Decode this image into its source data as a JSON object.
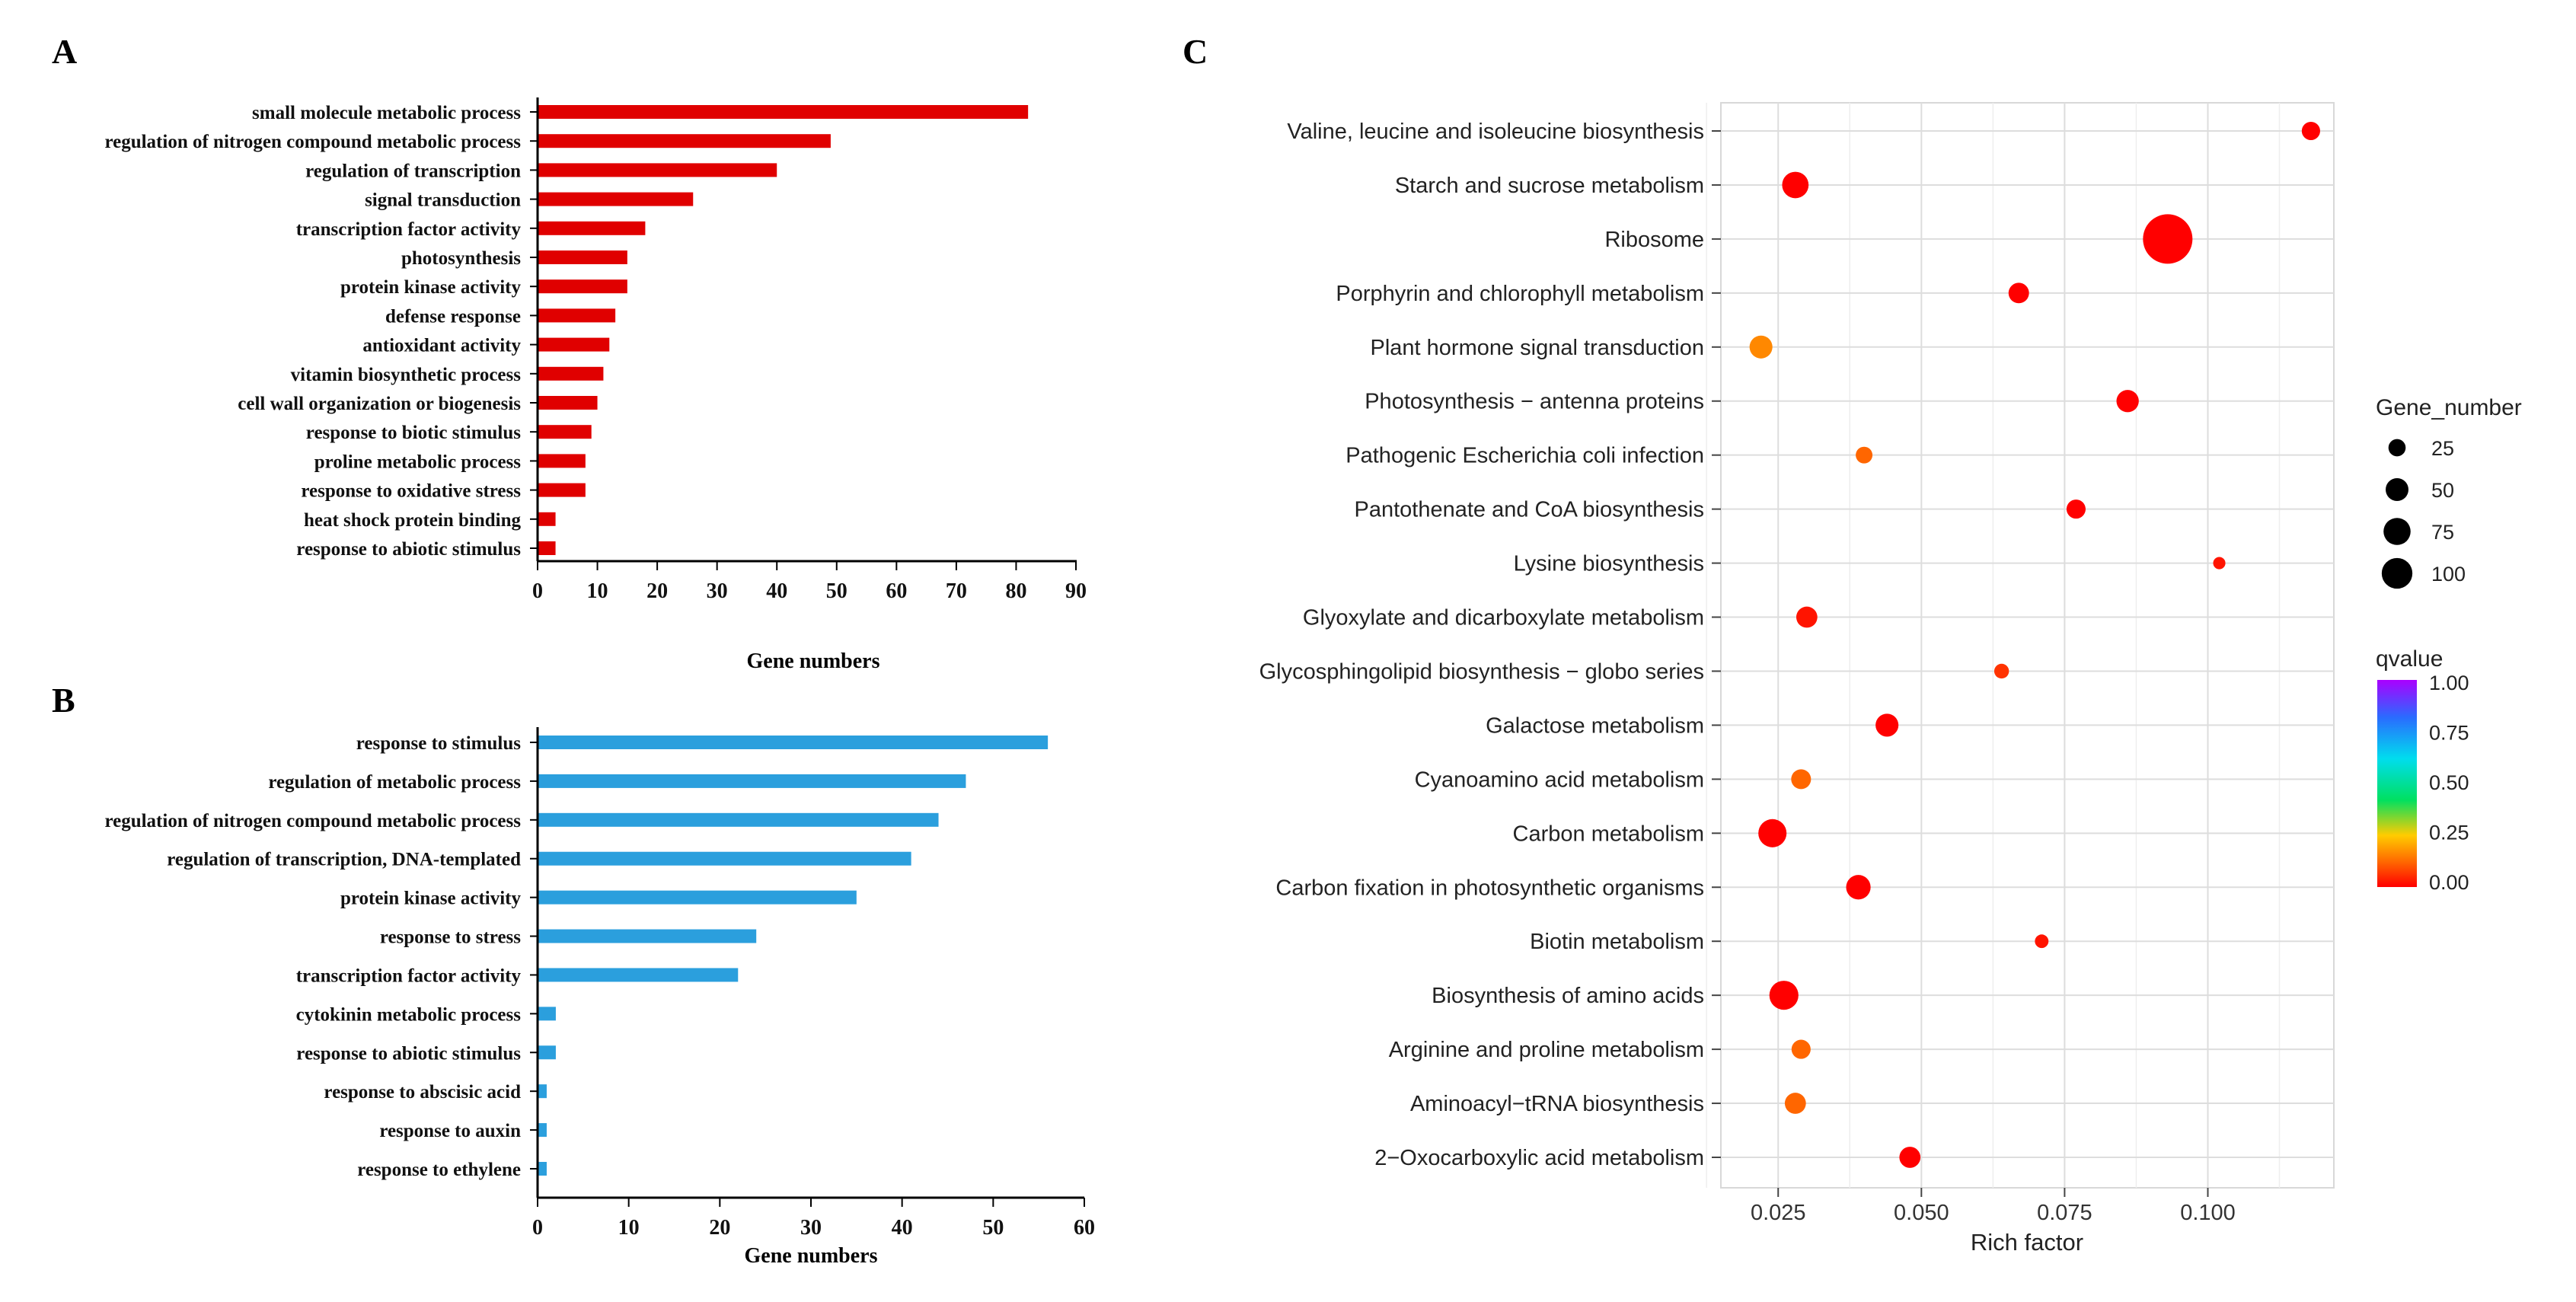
{
  "chart_data": [
    {
      "panel": "A",
      "type": "bar",
      "orientation": "horizontal",
      "color": "#e00000",
      "categories": [
        "small molecule metabolic process",
        "regulation of nitrogen compound metabolic process",
        "regulation of transcription",
        "signal transduction",
        "transcription factor activity",
        "photosynthesis",
        "protein kinase activity",
        "defense response",
        "antioxidant activity",
        "vitamin biosynthetic process",
        "cell wall organization or biogenesis",
        "response to biotic stimulus",
        "proline metabolic process",
        "response to oxidative stress",
        "heat shock protein binding",
        "response to abiotic stimulus"
      ],
      "values": [
        82,
        49,
        40,
        26,
        18,
        15,
        15,
        13,
        12,
        11,
        10,
        9,
        8,
        8,
        3,
        3
      ],
      "xlim": [
        0,
        90
      ],
      "xticks": [
        "0",
        "10",
        "20",
        "30",
        "40",
        "50",
        "60",
        "70",
        "80",
        "90"
      ],
      "xlabel": "Gene numbers",
      "ylabel": ""
    },
    {
      "panel": "B",
      "type": "bar",
      "orientation": "horizontal",
      "color": "#2b9fdd",
      "categories": [
        "response to stimulus",
        "regulation of metabolic process",
        "regulation of nitrogen compound metabolic process",
        "regulation of transcription, DNA-templated",
        "protein kinase activity",
        "response to stress",
        "transcription factor activity",
        "cytokinin metabolic process",
        "response to abiotic stimulus",
        "response to abscisic acid",
        "response to auxin",
        "response to ethylene"
      ],
      "values": [
        56,
        47,
        44,
        41,
        35,
        24,
        22,
        2,
        2,
        1,
        1,
        1
      ],
      "xlim": [
        0,
        60
      ],
      "xticks": [
        "0",
        "10",
        "20",
        "30",
        "40",
        "50",
        "60"
      ],
      "xlabel": "Gene numbers",
      "ylabel": ""
    },
    {
      "panel": "C",
      "type": "scatter",
      "categories": [
        "Valine, leucine and isoleucine biosynthesis",
        "Starch and sucrose metabolism",
        "Ribosome",
        "Porphyrin and chlorophyll metabolism",
        "Plant hormone signal transduction",
        "Photosynthesis − antenna proteins",
        "Pathogenic Escherichia coli infection",
        "Pantothenate and CoA biosynthesis",
        "Lysine biosynthesis",
        "Glyoxylate and dicarboxylate metabolism",
        "Glycosphingolipid biosynthesis − globo series",
        "Galactose metabolism",
        "Cyanoamino acid metabolism",
        "Carbon metabolism",
        "Carbon fixation in photosynthetic organisms",
        "Biotin metabolism",
        "Biosynthesis of amino acids",
        "Arginine and proline metabolism",
        "Aminoacyl−tRNA biosynthesis",
        "2−Oxocarboxylic acid metabolism"
      ],
      "rich_factor": [
        0.118,
        0.028,
        0.093,
        0.067,
        0.022,
        0.086,
        0.04,
        0.077,
        0.102,
        0.03,
        0.064,
        0.044,
        0.029,
        0.024,
        0.039,
        0.071,
        0.026,
        0.029,
        0.028,
        0.048
      ],
      "gene_number": [
        8,
        22,
        100,
        11,
        15,
        14,
        6,
        9,
        2,
        12,
        4,
        15,
        10,
        26,
        18,
        3,
        28,
        9,
        12,
        12
      ],
      "qvalue": [
        0.0,
        0.0,
        0.0,
        0.0,
        0.15,
        0.0,
        0.1,
        0.0,
        0.02,
        0.02,
        0.05,
        0.0,
        0.1,
        0.0,
        0.0,
        0.02,
        0.0,
        0.1,
        0.1,
        0.0
      ],
      "xlim": [
        0.015,
        0.122
      ],
      "xticks": [
        "0.025",
        "0.050",
        "0.075",
        "0.100"
      ],
      "xlabel": "Rich factor",
      "ylabel": "",
      "size_legend": {
        "title": "Gene_number",
        "labels": [
          "25",
          "50",
          "75",
          "100"
        ]
      },
      "color_legend": {
        "title": "qvalue",
        "labels": [
          "1.00",
          "0.75",
          "0.50",
          "0.25",
          "0.00"
        ],
        "colors": [
          "#aa00ff",
          "#2a6bff",
          "#00ddee",
          "#00e060",
          "#ffcc00",
          "#ff6600",
          "#ff0000"
        ]
      }
    }
  ],
  "panel_labels": {
    "a": "A",
    "b": "B",
    "c": "C"
  }
}
